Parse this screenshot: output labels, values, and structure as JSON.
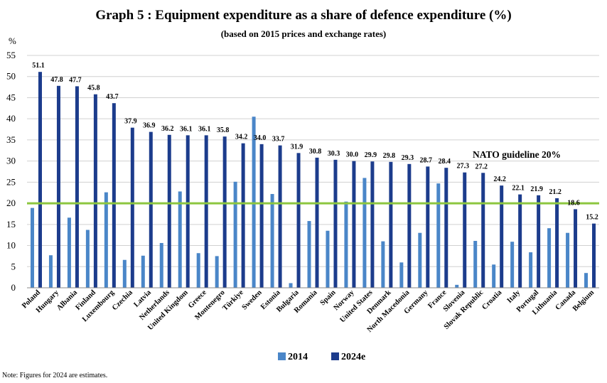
{
  "chart_data": {
    "type": "bar",
    "title": "Graph 5 : Equipment expenditure as a share of defence expenditure (%)",
    "subtitle": "(based on 2015 prices and exchange rates)",
    "ylabel": "%",
    "ylim": [
      0,
      55
    ],
    "yticks": [
      "0",
      "5",
      "10",
      "15",
      "20",
      "25",
      "30",
      "35",
      "40",
      "45",
      "50",
      "55"
    ],
    "categories": [
      "Poland",
      "Hungary",
      "Albania",
      "Finland",
      "Luxembourg",
      "Czechia",
      "Latvia",
      "Netherlands",
      "United Kingdom",
      "Greece",
      "Montenegro",
      "Türkiye",
      "Sweden",
      "Estonia",
      "Bulgaria",
      "Romania",
      "Spain",
      "Norway",
      "United States",
      "Denmark",
      "North Macedonia",
      "Germany",
      "France",
      "Slovenia",
      "Slovak Republic",
      "Croatia",
      "Italy",
      "Portugal",
      "Lithuania",
      "Canada",
      "Belgium"
    ],
    "series": [
      {
        "name": "2014",
        "color": "#4a86c8",
        "values": [
          18.9,
          7.7,
          16.6,
          13.7,
          22.6,
          6.6,
          7.6,
          10.6,
          22.8,
          8.2,
          7.5,
          25.1,
          40.5,
          22.2,
          1.1,
          15.8,
          13.5,
          20.4,
          26.0,
          11.0,
          6.0,
          13.0,
          24.7,
          0.7,
          11.1,
          5.5,
          10.9,
          8.4,
          14.1,
          13.0,
          3.5
        ]
      },
      {
        "name": "2024e",
        "color": "#1c3c8c",
        "values": [
          51.1,
          47.8,
          47.7,
          45.8,
          43.7,
          37.9,
          36.9,
          36.2,
          36.1,
          36.1,
          35.8,
          34.2,
          34.0,
          33.7,
          31.9,
          30.8,
          30.3,
          30.0,
          29.9,
          29.8,
          29.3,
          28.7,
          28.4,
          27.3,
          27.2,
          24.2,
          22.1,
          21.9,
          21.2,
          18.6,
          15.2
        ],
        "labels": [
          "51.1",
          "47.8",
          "47.7",
          "45.8",
          "43.7",
          "37.9",
          "36.9",
          "36.2",
          "36.1",
          "36.1",
          "35.8",
          "34.2",
          "34.0",
          "33.7",
          "31.9",
          "30.8",
          "30.3",
          "30.0",
          "29.9",
          "29.8",
          "29.3",
          "28.7",
          "28.4",
          "27.3",
          "27.2",
          "24.2",
          "22.1",
          "21.9",
          "21.2",
          "18.6",
          "15.2"
        ]
      }
    ],
    "guideline": {
      "label": "NATO guideline 20%",
      "value": 20,
      "color": "#8cc63f"
    },
    "grid": true,
    "legend_position": "bottom"
  },
  "note": "Note: Figures for 2024 are estimates."
}
